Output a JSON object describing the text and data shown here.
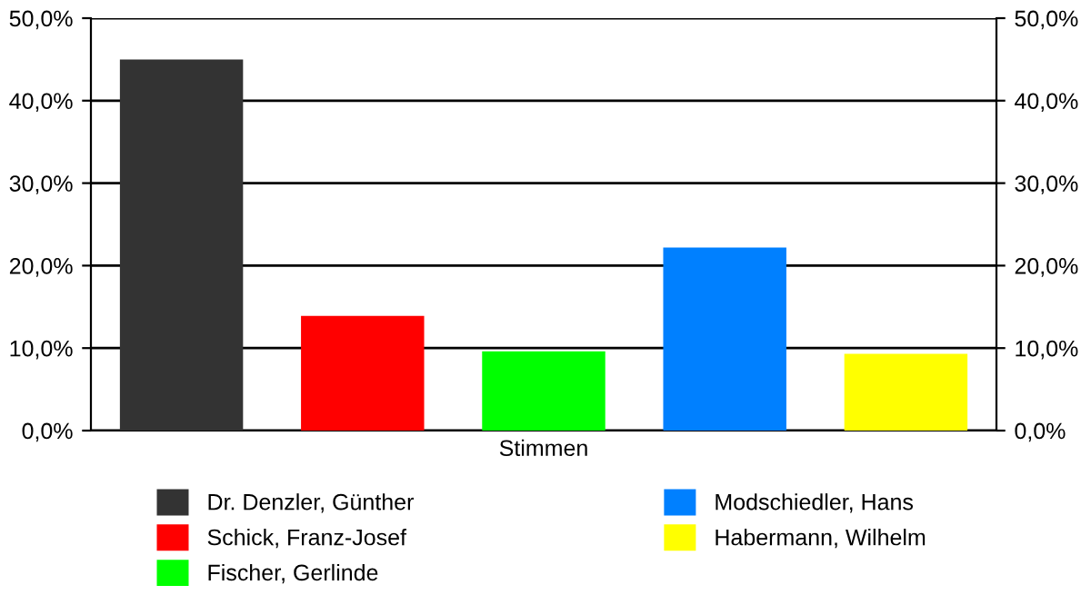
{
  "chart_data": {
    "type": "bar",
    "categories": [
      "Stimmen"
    ],
    "series": [
      {
        "name": "Dr. Denzler, Günther",
        "color": "#333333",
        "values": [
          45.0
        ]
      },
      {
        "name": "Schick, Franz-Josef",
        "color": "#ff0000",
        "values": [
          13.9
        ]
      },
      {
        "name": "Fischer, Gerlinde",
        "color": "#00ff00",
        "values": [
          9.6
        ]
      },
      {
        "name": "Modschiedler, Hans",
        "color": "#0080ff",
        "values": [
          22.2
        ]
      },
      {
        "name": "Habermann, Wilhelm",
        "color": "#ffff00",
        "values": [
          9.3
        ]
      }
    ],
    "ylim": [
      0,
      50
    ],
    "yticks": [
      {
        "value": 0,
        "label": "0,0%"
      },
      {
        "value": 10,
        "label": "10,0%"
      },
      {
        "value": 20,
        "label": "20,0%"
      },
      {
        "value": 30,
        "label": "30,0%"
      },
      {
        "value": 40,
        "label": "40,0%"
      },
      {
        "value": 50,
        "label": "50,0%"
      }
    ],
    "grid": "y",
    "legend": "bottom"
  }
}
